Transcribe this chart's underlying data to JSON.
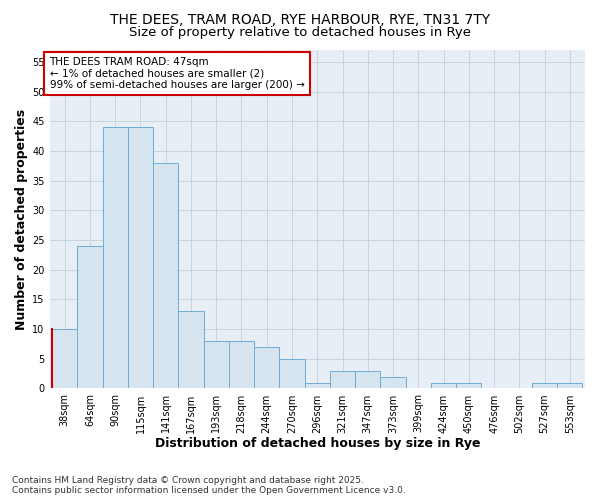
{
  "title1": "THE DEES, TRAM ROAD, RYE HARBOUR, RYE, TN31 7TY",
  "title2": "Size of property relative to detached houses in Rye",
  "xlabel": "Distribution of detached houses by size in Rye",
  "ylabel": "Number of detached properties",
  "categories": [
    "38sqm",
    "64sqm",
    "90sqm",
    "115sqm",
    "141sqm",
    "167sqm",
    "193sqm",
    "218sqm",
    "244sqm",
    "270sqm",
    "296sqm",
    "321sqm",
    "347sqm",
    "373sqm",
    "399sqm",
    "424sqm",
    "450sqm",
    "476sqm",
    "502sqm",
    "527sqm",
    "553sqm"
  ],
  "values": [
    10,
    24,
    44,
    44,
    38,
    13,
    8,
    8,
    7,
    5,
    1,
    3,
    3,
    2,
    0,
    1,
    1,
    0,
    0,
    1,
    1
  ],
  "bar_color": "#d6e4f0",
  "bar_edge_color": "#6aaed6",
  "highlight_bar_index": 0,
  "highlight_left_edge_color": "#cc0000",
  "annotation_title": "THE DEES TRAM ROAD: 47sqm",
  "annotation_line1": "← 1% of detached houses are smaller (2)",
  "annotation_line2": "99% of semi-detached houses are larger (200) →",
  "annotation_box_facecolor": "#ffffff",
  "annotation_box_edgecolor": "#cc0000",
  "ylim": [
    0,
    57
  ],
  "yticks": [
    0,
    5,
    10,
    15,
    20,
    25,
    30,
    35,
    40,
    45,
    50,
    55
  ],
  "background_color": "#ffffff",
  "plot_bg_color": "#e8eef5",
  "grid_color": "#c8d4e0",
  "footer_line1": "Contains HM Land Registry data © Crown copyright and database right 2025.",
  "footer_line2": "Contains public sector information licensed under the Open Government Licence v3.0.",
  "title_fontsize": 10,
  "subtitle_fontsize": 9.5,
  "axis_label_fontsize": 9,
  "tick_fontsize": 7,
  "annotation_fontsize": 7.5,
  "footer_fontsize": 6.5
}
